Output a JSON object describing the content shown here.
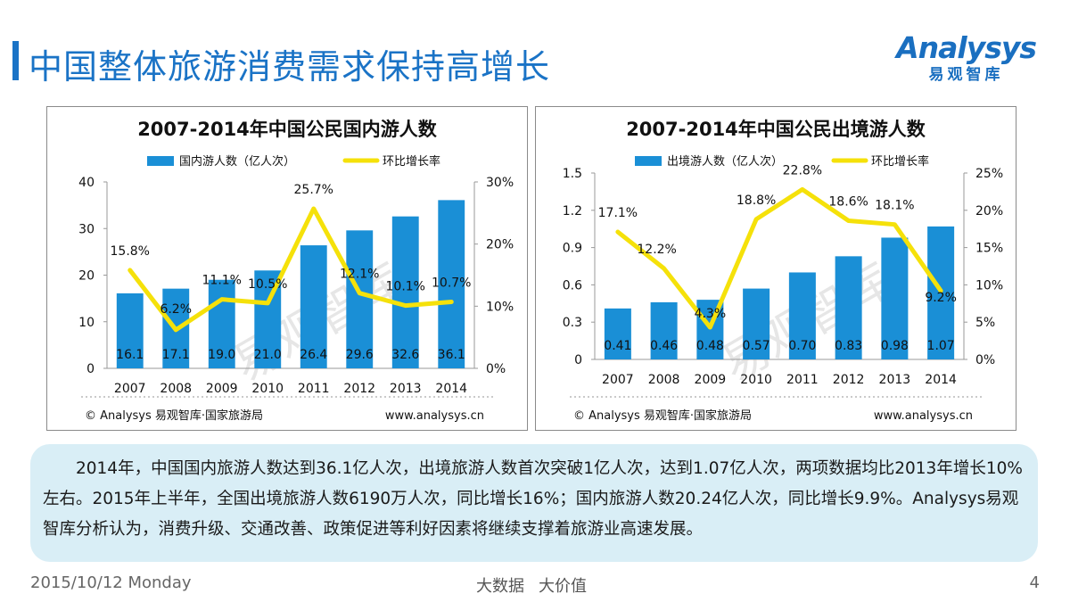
{
  "page": {
    "title": "中国整体旅游消费需求保持高增长",
    "logo_word": "Analysys",
    "logo_sub": "易观智库",
    "summary": "2014年，中国国内旅游人数达到36.1亿人次，出境旅游人数首次突破1亿人次，达到1.07亿人次，两项数据均比2013年增长10%左右。2015年上半年，全国出境旅游人数6190万人次，同比增长16%；国内旅游人数20.24亿人次，同比增长9.9%。Analysys易观智库分析认为，消费升级、交通改善、政策促进等利好因素将继续支撑着旅游业高速发展。",
    "footer_date": "2015/10/12 Monday",
    "footer_slogan_1": "大数据",
    "footer_slogan_2": "大价值",
    "page_number": "4"
  },
  "colors": {
    "bar": "#1a8fd6",
    "line": "#f5e10a",
    "accent": "#1a73c6"
  },
  "chart_data": [
    {
      "type": "bar",
      "title": "2007-2014年中国公民国内游人数",
      "categories": [
        "2007",
        "2008",
        "2009",
        "2010",
        "2011",
        "2012",
        "2013",
        "2014"
      ],
      "series": [
        {
          "name": "国内游人数（亿人次）",
          "type": "bar",
          "axis": "left",
          "values": [
            16.1,
            17.1,
            19.0,
            21.0,
            26.4,
            29.6,
            32.6,
            36.1
          ],
          "labels": [
            "16.1",
            "17.1",
            "19.0",
            "21.0",
            "26.4",
            "29.6",
            "32.6",
            "36.1"
          ]
        },
        {
          "name": "环比增长率",
          "type": "line",
          "axis": "right",
          "values": [
            15.8,
            6.2,
            11.1,
            10.5,
            25.7,
            12.1,
            10.1,
            10.7
          ],
          "labels": [
            "15.8%",
            "6.2%",
            "11.1%",
            "10.5%",
            "25.7%",
            "12.1%",
            "10.1%",
            "10.7%"
          ]
        }
      ],
      "y_left": {
        "range": [
          0,
          40
        ],
        "ticks": [
          "0",
          "10",
          "20",
          "30",
          "40"
        ],
        "values": [
          0,
          10,
          20,
          30,
          40
        ]
      },
      "y_right": {
        "range": [
          0,
          30
        ],
        "ticks": [
          "0%",
          "10%",
          "20%",
          "30%"
        ],
        "values": [
          0,
          10,
          20,
          30
        ]
      },
      "source": "© Analysys 易观智库·国家旅游局",
      "url": "www.analysys.cn",
      "watermark": "易观智库"
    },
    {
      "type": "bar",
      "title": "2007-2014年中国公民出境游人数",
      "categories": [
        "2007",
        "2008",
        "2009",
        "2010",
        "2011",
        "2012",
        "2013",
        "2014"
      ],
      "series": [
        {
          "name": "出境游人数（亿人次）",
          "type": "bar",
          "axis": "left",
          "values": [
            0.41,
            0.46,
            0.48,
            0.57,
            0.7,
            0.83,
            0.98,
            1.07
          ],
          "labels": [
            "0.41",
            "0.46",
            "0.48",
            "0.57",
            "0.70",
            "0.83",
            "0.98",
            "1.07"
          ]
        },
        {
          "name": "环比增长率",
          "type": "line",
          "axis": "right",
          "values": [
            17.1,
            12.2,
            4.3,
            18.8,
            22.8,
            18.6,
            18.1,
            9.2
          ],
          "labels": [
            "17.1%",
            "12.2%",
            "4.3%",
            "18.8%",
            "22.8%",
            "18.6%",
            "18.1%",
            "9.2%"
          ]
        }
      ],
      "y_left": {
        "range": [
          0,
          1.5
        ],
        "ticks": [
          "0",
          "0.3",
          "0.6",
          "0.9",
          "1.2",
          "1.5"
        ],
        "values": [
          0,
          0.3,
          0.6,
          0.9,
          1.2,
          1.5
        ]
      },
      "y_right": {
        "range": [
          0,
          25
        ],
        "ticks": [
          "0%",
          "5%",
          "10%",
          "15%",
          "20%",
          "25%"
        ],
        "values": [
          0,
          5,
          10,
          15,
          20,
          25
        ]
      },
      "source": "© Analysys 易观智库·国家旅游局",
      "url": "www.analysys.cn",
      "watermark": "易观智库"
    }
  ]
}
